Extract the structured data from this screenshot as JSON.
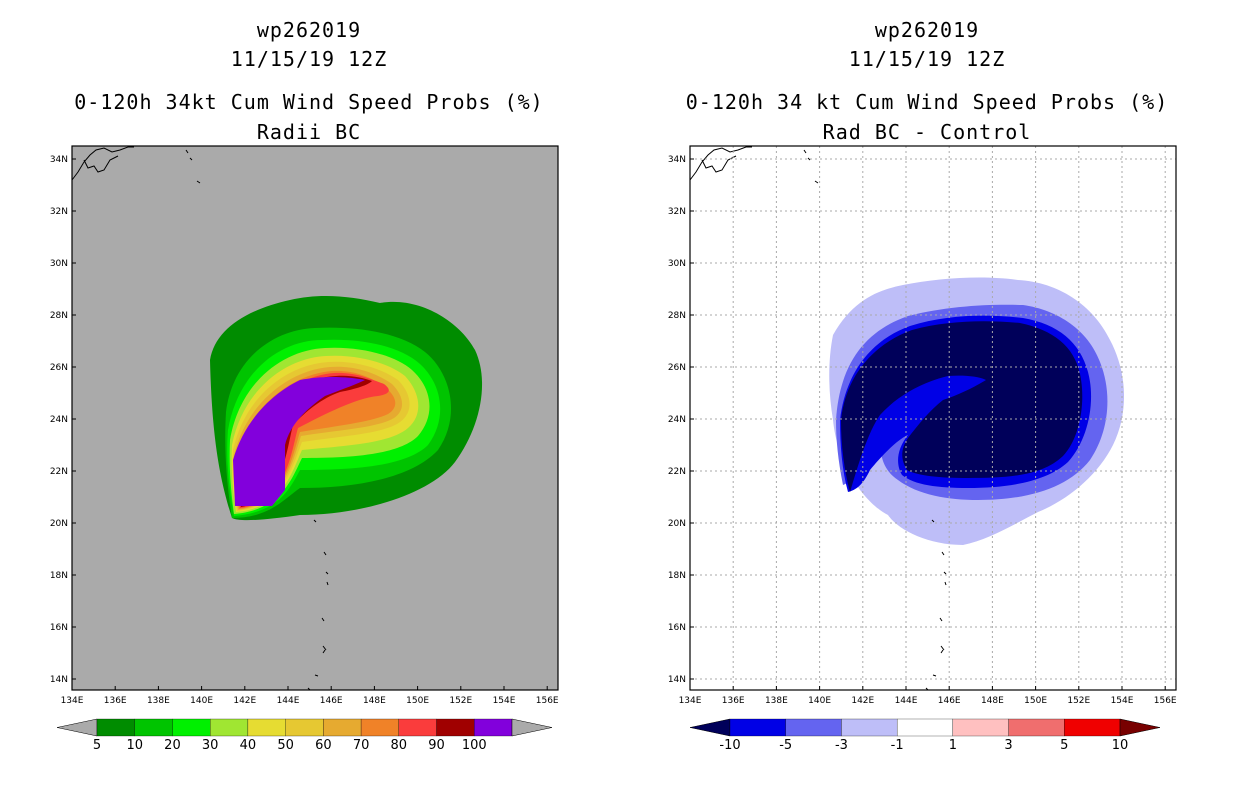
{
  "chart_data": [
    {
      "type": "contour-map",
      "title_lines": [
        "wp262019",
        "11/15/19 12Z",
        "0-120h 34kt Cum Wind Speed Probs (%)",
        "Radii BC"
      ],
      "x_ticks": [
        "134E",
        "136E",
        "138E",
        "140E",
        "142E",
        "144E",
        "146E",
        "148E",
        "150E",
        "152E",
        "154E",
        "156E"
      ],
      "y_ticks": [
        "14N",
        "16N",
        "18N",
        "20N",
        "22N",
        "24N",
        "26N",
        "28N",
        "30N",
        "32N",
        "34N"
      ],
      "xlim": [
        134,
        156.5
      ],
      "ylim": [
        13.5,
        34.5
      ],
      "background": "#aaaaaa",
      "grid": false,
      "colorbar": {
        "labels": [
          "5",
          "10",
          "20",
          "30",
          "40",
          "50",
          "60",
          "70",
          "80",
          "90",
          "100"
        ],
        "colors": [
          "#008c00",
          "#00c400",
          "#00f000",
          "#a0e632",
          "#e6dc32",
          "#e6c832",
          "#e6aa30",
          "#f08228",
          "#fa3c3c",
          "#a00000",
          "#8200dc"
        ],
        "under_color": "#aaaaaa",
        "over_color": "#aaaaaa"
      },
      "levels": [
        5,
        10,
        20,
        30,
        40,
        50,
        60,
        70,
        80,
        90,
        100
      ]
    },
    {
      "type": "contour-map",
      "title_lines": [
        "wp262019",
        "11/15/19 12Z",
        "0-120h 34 kt Cum Wind Speed Probs (%)",
        "Rad BC - Control"
      ],
      "x_ticks": [
        "134E",
        "136E",
        "138E",
        "140E",
        "142E",
        "144E",
        "146E",
        "148E",
        "150E",
        "152E",
        "154E",
        "156E"
      ],
      "y_ticks": [
        "14N",
        "16N",
        "18N",
        "20N",
        "22N",
        "24N",
        "26N",
        "28N",
        "30N",
        "32N",
        "34N"
      ],
      "xlim": [
        134,
        156.5
      ],
      "ylim": [
        13.5,
        34.5
      ],
      "background": "#ffffff",
      "grid": true,
      "colorbar": {
        "labels": [
          "-10",
          "-5",
          "-3",
          "-1",
          "1",
          "3",
          "5",
          "10"
        ],
        "colors": [
          "#0000e6",
          "#6464f0",
          "#bebef8",
          "#ffffff",
          "#ffc0c0",
          "#f06e6e",
          "#f00000"
        ],
        "under_color": "#00005a",
        "over_color": "#780000"
      },
      "levels": [
        -10,
        -5,
        -3,
        -1,
        1,
        3,
        5,
        10
      ]
    }
  ]
}
